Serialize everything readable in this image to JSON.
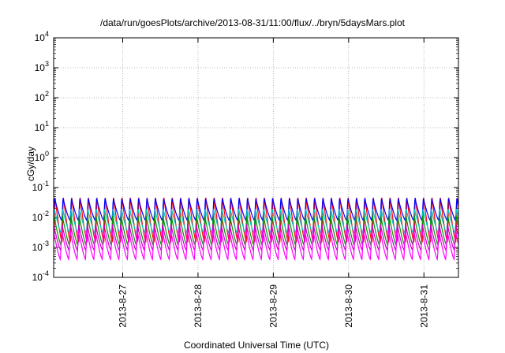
{
  "chart_data": {
    "type": "line",
    "title": "/data/run/goesPlots/archive/2013-08-31/11:00/flux/../bryn/5daysMars.plot",
    "xlabel": "Coordinated Universal Time (UTC)",
    "ylabel": "cGy/day",
    "yscale": "log",
    "ylim": [
      0.0001,
      10000
    ],
    "y_ticks": [
      {
        "exp": "-4",
        "value": 0.0001
      },
      {
        "exp": "-3",
        "value": 0.001
      },
      {
        "exp": "-2",
        "value": 0.01
      },
      {
        "exp": "-1",
        "value": 0.1
      },
      {
        "exp": "0",
        "value": 1
      },
      {
        "exp": "1",
        "value": 10
      },
      {
        "exp": "2",
        "value": 100
      },
      {
        "exp": "3",
        "value": 1000
      },
      {
        "exp": "4",
        "value": 10000
      }
    ],
    "y_tick_base": "10",
    "xlim": [
      "2013-08-26 02:00",
      "2013-08-31 11:00"
    ],
    "x_ticks": [
      {
        "label": "2013-8-27",
        "value": "2013-08-27 00:00"
      },
      {
        "label": "2013-8-28",
        "value": "2013-08-28 00:00"
      },
      {
        "label": "2013-8-29",
        "value": "2013-08-29 00:00"
      },
      {
        "label": "2013-8-30",
        "value": "2013-08-30 00:00"
      },
      {
        "label": "2013-8-31",
        "value": "2013-08-31 00:00"
      }
    ],
    "grid": true,
    "legend": "none",
    "pattern": {
      "description": "periodic sawtooth variation, roughly 9 cycles per day",
      "period_hours": 2.67
    },
    "series": [
      {
        "color": "#ff0000",
        "peak": 0.05,
        "trough": 0.0015
      },
      {
        "color": "#0000ff",
        "peak": 0.045,
        "trough": 0.008
      },
      {
        "color": "#00c8c8",
        "peak": 0.02,
        "trough": 0.003
      },
      {
        "color": "#009600",
        "peak": 0.012,
        "trough": 0.0012
      },
      {
        "color": "#c800c8",
        "peak": 0.006,
        "trough": 0.0008
      },
      {
        "color": "#ff00ff",
        "peak": 0.004,
        "trough": 0.0004
      }
    ]
  }
}
